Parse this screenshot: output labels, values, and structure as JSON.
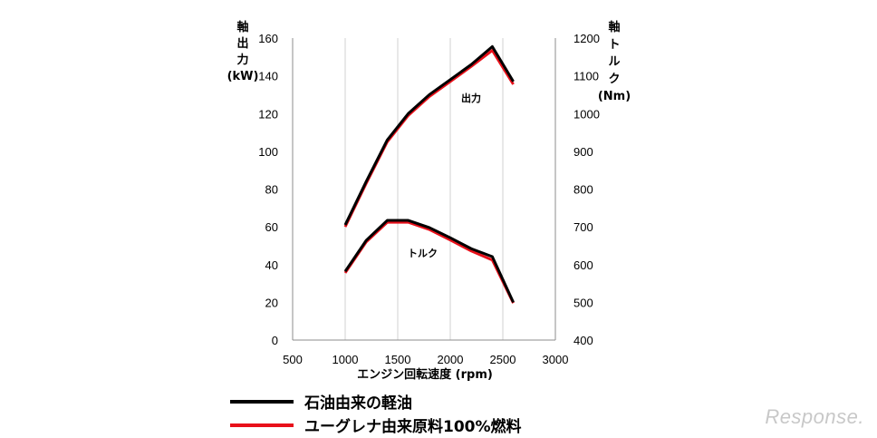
{
  "chart_data": {
    "type": "line",
    "xlabel": "エンジン回転速度 (rpm)",
    "x_ticks": [
      500,
      1000,
      1500,
      2000,
      2500,
      3000
    ],
    "xlim": [
      500,
      3000
    ],
    "y_left": {
      "label_chars": [
        "軸",
        "出",
        "力"
      ],
      "unit": "(kW)",
      "ticks": [
        0,
        20,
        40,
        60,
        80,
        100,
        120,
        140,
        160
      ],
      "lim": [
        0,
        160
      ]
    },
    "y_right": {
      "label_chars": [
        "軸",
        "ト",
        "ル",
        "ク"
      ],
      "unit": "(Nm)",
      "ticks": [
        400,
        500,
        600,
        700,
        800,
        900,
        1000,
        1100,
        1200
      ],
      "lim": [
        400,
        1200
      ]
    },
    "grid": "vertical",
    "annotations": {
      "power": "出力",
      "torque": "トルク"
    },
    "series": [
      {
        "name": "石油由来の軽油",
        "color": "#000000",
        "power_kw": [
          [
            1000,
            61
          ],
          [
            1200,
            84
          ],
          [
            1400,
            106
          ],
          [
            1600,
            120
          ],
          [
            1800,
            130
          ],
          [
            2000,
            138
          ],
          [
            2200,
            146
          ],
          [
            2400,
            155.5
          ],
          [
            2600,
            137
          ]
        ],
        "torque_nm": [
          [
            1000,
            582
          ],
          [
            1200,
            664
          ],
          [
            1400,
            717
          ],
          [
            1600,
            717
          ],
          [
            1800,
            698
          ],
          [
            2000,
            671
          ],
          [
            2200,
            642
          ],
          [
            2400,
            621
          ],
          [
            2600,
            500
          ]
        ]
      },
      {
        "name": "ユーグレナ由来原料100%燃料",
        "color": "#e8101a",
        "power_kw": [
          [
            1000,
            60
          ],
          [
            1200,
            83
          ],
          [
            1400,
            105
          ],
          [
            1600,
            119
          ],
          [
            1800,
            129
          ],
          [
            2000,
            137
          ],
          [
            2200,
            145
          ],
          [
            2400,
            153.5
          ],
          [
            2600,
            135.5
          ]
        ],
        "torque_nm": [
          [
            1000,
            578
          ],
          [
            1200,
            660
          ],
          [
            1400,
            712
          ],
          [
            1600,
            712
          ],
          [
            1800,
            693
          ],
          [
            2000,
            665
          ],
          [
            2200,
            636
          ],
          [
            2400,
            612
          ],
          [
            2600,
            498
          ]
        ]
      }
    ]
  },
  "legend": [
    {
      "label": "石油由来の軽油",
      "color": "#000000"
    },
    {
      "label": "ユーグレナ由来原料100%燃料",
      "color": "#e8101a"
    }
  ],
  "watermark": "Response."
}
